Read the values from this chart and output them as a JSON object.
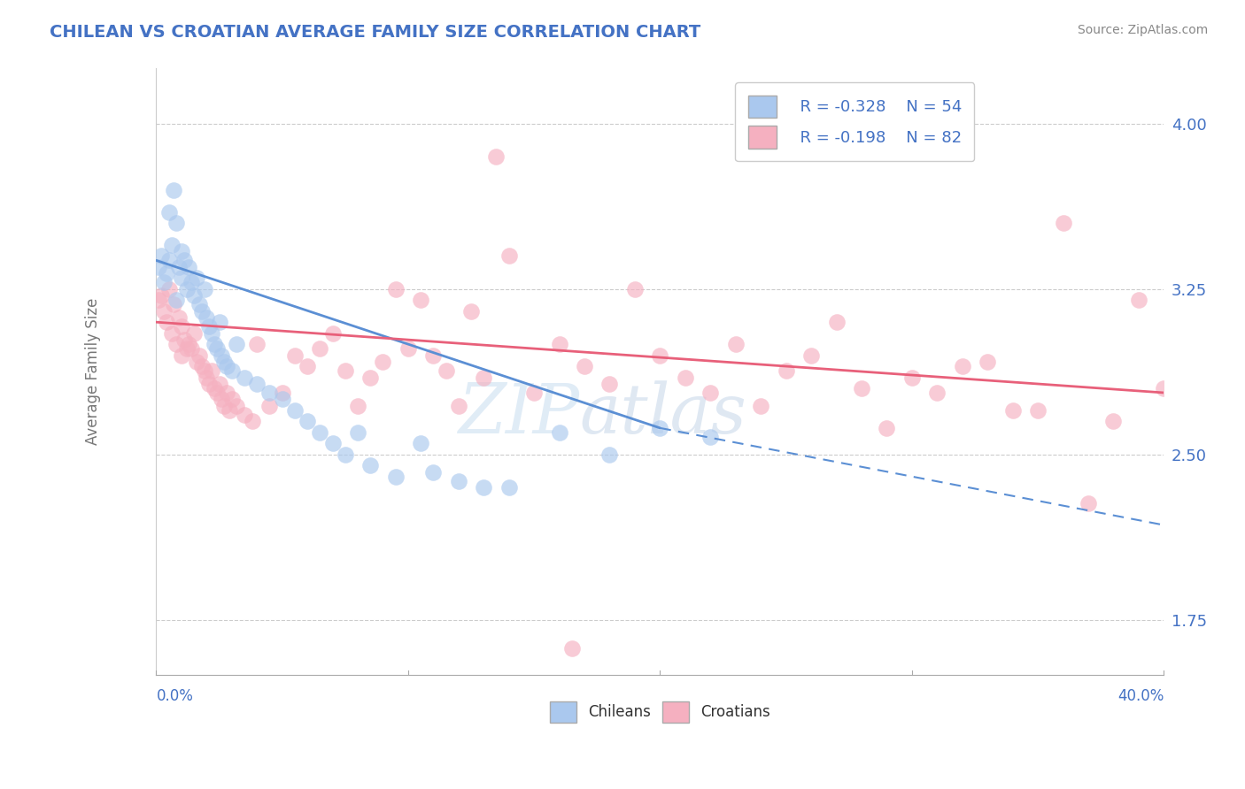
{
  "title": "CHILEAN VS CROATIAN AVERAGE FAMILY SIZE CORRELATION CHART",
  "source": "Source: ZipAtlas.com",
  "ylabel": "Average Family Size",
  "xlim": [
    0.0,
    40.0
  ],
  "ylim": [
    1.5,
    4.25
  ],
  "yticks": [
    1.75,
    2.5,
    3.25,
    4.0
  ],
  "ytick_labels": [
    "1.75",
    "2.50",
    "3.25",
    "4.00"
  ],
  "xticks": [
    0.0,
    10.0,
    20.0,
    30.0,
    40.0
  ],
  "xtick_labels": [
    "0.0%",
    "",
    "",
    "",
    "40.0%"
  ],
  "chilean_color": "#aac8ee",
  "croatian_color": "#f5b0c0",
  "chilean_edge_color": "#aac8ee",
  "croatian_edge_color": "#f5b0c0",
  "chilean_line_color": "#5b8fd4",
  "croatian_line_color": "#e8607a",
  "legend_r_chilean": "R = -0.328",
  "legend_n_chilean": "N = 54",
  "legend_r_croatian": "R = -0.198",
  "legend_n_croatian": "N = 82",
  "watermark_zip": "ZIP",
  "watermark_atlas": "atlas",
  "title_color": "#4472c4",
  "axis_label_color": "#777777",
  "tick_color": "#4472c4",
  "grid_color": "#cccccc",
  "background_color": "#ffffff",
  "chilean_solid_end": 20.0,
  "chilean_x": [
    0.1,
    0.2,
    0.3,
    0.4,
    0.5,
    0.5,
    0.6,
    0.7,
    0.8,
    0.8,
    0.9,
    1.0,
    1.0,
    1.1,
    1.2,
    1.3,
    1.4,
    1.5,
    1.6,
    1.7,
    1.8,
    1.9,
    2.0,
    2.1,
    2.2,
    2.3,
    2.4,
    2.5,
    2.6,
    2.7,
    2.8,
    3.0,
    3.2,
    3.5,
    4.0,
    4.5,
    5.0,
    5.5,
    6.0,
    6.5,
    7.0,
    7.5,
    8.0,
    8.5,
    9.5,
    10.5,
    11.0,
    12.0,
    13.0,
    14.0,
    16.0,
    18.0,
    20.0,
    22.0
  ],
  "chilean_y": [
    3.35,
    3.4,
    3.28,
    3.32,
    3.6,
    3.38,
    3.45,
    3.7,
    3.2,
    3.55,
    3.35,
    3.42,
    3.3,
    3.38,
    3.25,
    3.35,
    3.28,
    3.22,
    3.3,
    3.18,
    3.15,
    3.25,
    3.12,
    3.08,
    3.05,
    3.0,
    2.98,
    3.1,
    2.95,
    2.92,
    2.9,
    2.88,
    3.0,
    2.85,
    2.82,
    2.78,
    2.75,
    2.7,
    2.65,
    2.6,
    2.55,
    2.5,
    2.6,
    2.45,
    2.4,
    2.55,
    2.42,
    2.38,
    2.35,
    2.35,
    2.6,
    2.5,
    2.62,
    2.58
  ],
  "croatian_x": [
    0.1,
    0.2,
    0.3,
    0.4,
    0.5,
    0.6,
    0.7,
    0.8,
    0.9,
    1.0,
    1.0,
    1.1,
    1.2,
    1.3,
    1.4,
    1.5,
    1.6,
    1.7,
    1.8,
    1.9,
    2.0,
    2.1,
    2.2,
    2.3,
    2.4,
    2.5,
    2.6,
    2.7,
    2.8,
    2.9,
    3.0,
    3.2,
    3.5,
    3.8,
    4.0,
    4.5,
    5.0,
    5.5,
    6.0,
    6.5,
    7.0,
    7.5,
    8.0,
    8.5,
    9.0,
    9.5,
    10.0,
    10.5,
    11.0,
    11.5,
    12.0,
    12.5,
    13.0,
    14.0,
    15.0,
    16.0,
    17.0,
    18.0,
    19.0,
    20.0,
    21.0,
    22.0,
    23.0,
    24.0,
    25.0,
    26.0,
    28.0,
    30.0,
    32.0,
    34.0,
    36.0,
    37.0,
    38.0,
    39.0,
    40.0,
    27.0,
    29.0,
    31.0,
    33.0,
    35.0,
    13.5,
    16.5
  ],
  "croatian_y": [
    3.2,
    3.22,
    3.15,
    3.1,
    3.25,
    3.05,
    3.18,
    3.0,
    3.12,
    2.95,
    3.08,
    3.02,
    2.98,
    3.0,
    2.98,
    3.05,
    2.92,
    2.95,
    2.9,
    2.88,
    2.85,
    2.82,
    2.88,
    2.8,
    2.78,
    2.82,
    2.75,
    2.72,
    2.78,
    2.7,
    2.75,
    2.72,
    2.68,
    2.65,
    3.0,
    2.72,
    2.78,
    2.95,
    2.9,
    2.98,
    3.05,
    2.88,
    2.72,
    2.85,
    2.92,
    3.25,
    2.98,
    3.2,
    2.95,
    2.88,
    2.72,
    3.15,
    2.85,
    3.4,
    2.78,
    3.0,
    2.9,
    2.82,
    3.25,
    2.95,
    2.85,
    2.78,
    3.0,
    2.72,
    2.88,
    2.95,
    2.8,
    2.85,
    2.9,
    2.7,
    3.55,
    2.28,
    2.65,
    3.2,
    2.8,
    3.1,
    2.62,
    2.78,
    2.92,
    2.7,
    3.85,
    1.62
  ]
}
